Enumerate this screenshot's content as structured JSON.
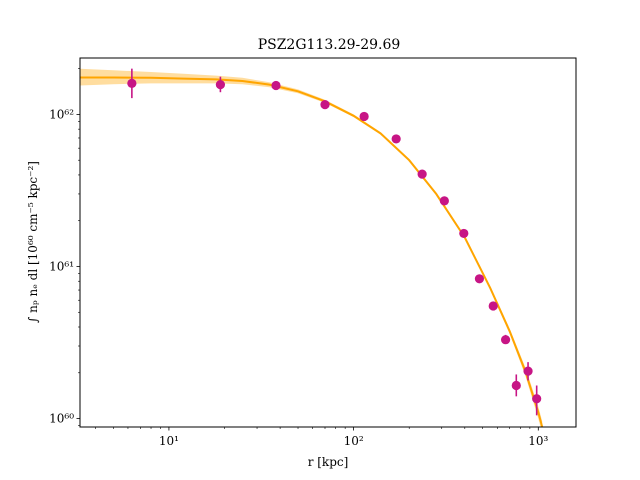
{
  "chart_data": {
    "type": "scatter",
    "title": "PSZ2G113.29-29.69",
    "xlabel": "r [kpc]",
    "ylabel": "∫ nₚ nₑ dl [10⁶⁰ cm⁻⁵ kpc⁻²]",
    "xscale": "log",
    "yscale": "log",
    "xlim": [
      3.3,
      1600
    ],
    "ylim": [
      8.8e+59,
      2.35e+62
    ],
    "x_ticks": [
      10,
      100,
      1000
    ],
    "x_tick_labels": [
      "10¹",
      "10²",
      "10³"
    ],
    "y_ticks": [
      1e+60,
      1e+61,
      1e+62
    ],
    "y_tick_labels": [
      "10⁶⁰",
      "10⁶¹",
      "10⁶²"
    ],
    "grid": false,
    "legend": "none",
    "series": [
      {
        "kind": "points",
        "color": "#c71585",
        "x": [
          6.3,
          19,
          38,
          70,
          114,
          170,
          235,
          310,
          395,
          480,
          570,
          665,
          760,
          880,
          980
        ],
        "y": [
          1.6e+62,
          1.57e+62,
          1.55e+62,
          1.16e+62,
          9.7e+61,
          6.9e+61,
          4.05e+61,
          2.7e+61,
          1.65e+61,
          8.3e+60,
          5.5e+60,
          3.3e+60,
          1.65e+60,
          2.05e+60,
          1.35e+60
        ],
        "y_lower": [
          1.28e+62,
          1.4e+62,
          1.47e+62,
          1.1e+62,
          9.2e+61,
          6.6e+61,
          3.9e+61,
          2.6e+61,
          1.6e+61,
          8e+60,
          5.3e+60,
          3.1e+60,
          1.4e+60,
          1.78e+60,
          1.05e+60
        ],
        "y_upper": [
          2e+62,
          1.77e+62,
          1.63e+62,
          1.22e+62,
          1.02e+62,
          7.2e+61,
          4.2e+61,
          2.8e+61,
          1.7e+61,
          8.6e+60,
          5.7e+60,
          3.55e+60,
          1.95e+60,
          2.35e+60,
          1.65e+60
        ]
      },
      {
        "kind": "model",
        "color": "#ffa500",
        "band_color": "#ffd27f",
        "x": [
          3.3,
          5,
          8,
          12,
          18,
          25,
          35,
          50,
          70,
          100,
          140,
          200,
          280,
          400,
          550,
          700,
          850,
          1000,
          1050
        ],
        "y": [
          1.75e+62,
          1.75e+62,
          1.74e+62,
          1.72e+62,
          1.7e+62,
          1.66e+62,
          1.57e+62,
          1.42e+62,
          1.22e+62,
          9.8e+61,
          7.5e+61,
          5e+61,
          3e+61,
          1.55e+61,
          7.2e+60,
          3.75e+60,
          2.05e+60,
          1.1e+60,
          8.8e+59
        ],
        "y_lower": [
          1.55e+62,
          1.58e+62,
          1.6e+62,
          1.6e+62,
          1.6e+62,
          1.58e+62,
          1.51e+62,
          1.38e+62,
          1.19e+62,
          9.6e+61,
          7.35e+61,
          4.9e+61,
          2.94e+61,
          1.52e+61,
          7e+60,
          3.6e+60,
          1.92e+60,
          1e+60,
          8e+59
        ],
        "y_upper": [
          2e+62,
          1.95e+62,
          1.9e+62,
          1.85e+62,
          1.8e+62,
          1.74e+62,
          1.63e+62,
          1.46e+62,
          1.25e+62,
          1e+62,
          7.65e+61,
          5.1e+61,
          3.06e+61,
          1.58e+61,
          7.4e+60,
          3.9e+60,
          2.18e+60,
          1.2e+60,
          9.6e+59
        ]
      }
    ]
  }
}
